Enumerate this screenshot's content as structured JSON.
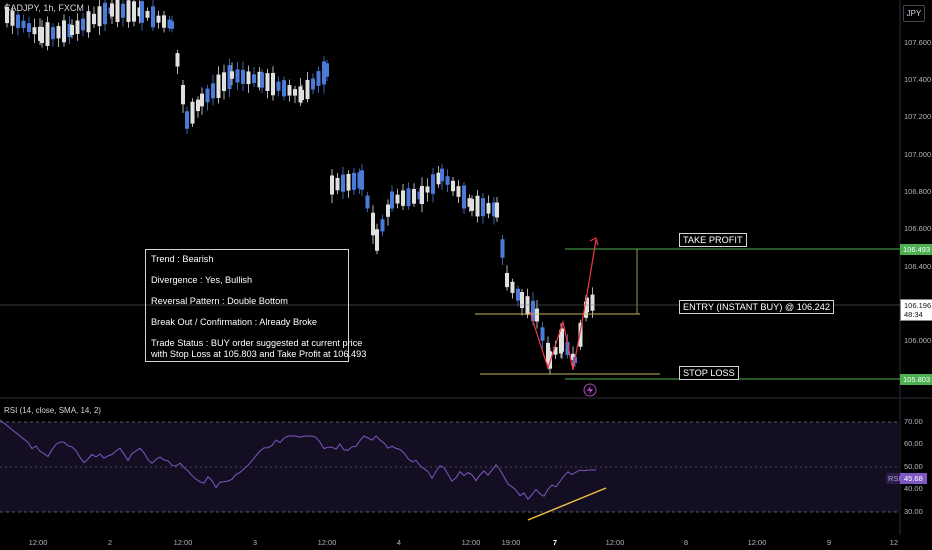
{
  "header": {
    "ticker": "CADJPY, 1h, FXCM"
  },
  "currency_button": "JPY",
  "info_box": {
    "trend": "Trend : Bearish",
    "divergence": "Divergence : Yes, Bullish",
    "pattern": "Reversal Pattern : Double Bottom",
    "breakout": "Break Out / Confirmation : Already Broke",
    "status_line1": "Trade Status : BUY order suggested at current price",
    "status_line2": "with Stop Loss at 105.803 and Take Profit at 106.493"
  },
  "annotations": {
    "take_profit": "TAKE PROFIT",
    "entry": "ENTRY (INSTANT BUY) @ 106.242",
    "stop_loss": "STOP LOSS"
  },
  "price_labels": {
    "take_profit": "106.493",
    "current": "106.196",
    "countdown": "48:34",
    "stop_loss": "105.803"
  },
  "price_axis": [
    "107.600",
    "107.400",
    "107.200",
    "107.000",
    "106.800",
    "106.600",
    "106.400",
    "106.000"
  ],
  "time_axis": [
    {
      "label": "12:00",
      "bold": false
    },
    {
      "label": "2",
      "bold": false
    },
    {
      "label": "12:00",
      "bold": false
    },
    {
      "label": "3",
      "bold": false
    },
    {
      "label": "12:00",
      "bold": false
    },
    {
      "label": "4",
      "bold": false
    },
    {
      "label": "12:00",
      "bold": false
    },
    {
      "label": "19:00",
      "bold": false
    },
    {
      "label": "7",
      "bold": true
    },
    {
      "label": "12:00",
      "bold": false
    },
    {
      "label": "8",
      "bold": false
    },
    {
      "label": "12:00",
      "bold": false
    },
    {
      "label": "9",
      "bold": false
    },
    {
      "label": "12",
      "bold": false
    }
  ],
  "rsi": {
    "title": "RSI (14, close, SMA, 14, 2)",
    "axis": [
      "70.00",
      "60.00",
      "50.00",
      "40.00",
      "30.00"
    ],
    "badge_label": "RSI",
    "badge_value": "45.68"
  },
  "colors": {
    "bull": "#4a7bd8",
    "bear": "#e0e0e0",
    "take_profit": "#4caf50",
    "entry_line": "#c8b560",
    "rsi_line": "#7e57c2",
    "divergence": "#f5c242",
    "arrow": "#f23645"
  },
  "icons": {
    "lightning": "lightning-icon"
  }
}
